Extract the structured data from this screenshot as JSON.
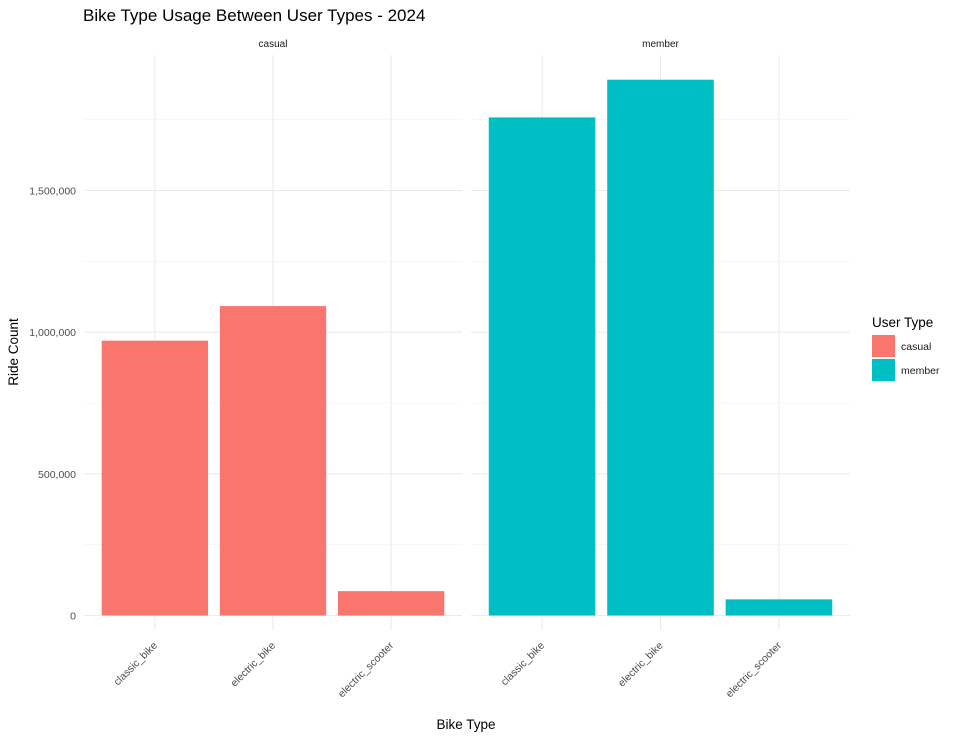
{
  "chart_data": {
    "type": "bar",
    "title": "Bike Type Usage Between User Types - 2024",
    "xlabel": "Bike Type",
    "ylabel": "Ride Count",
    "ylim": [
      0,
      1980000
    ],
    "y_ticks": [
      0,
      500000,
      1000000,
      1500000
    ],
    "y_tick_labels": [
      "0",
      "500,000",
      "1,000,000",
      "1,500,000"
    ],
    "categories": [
      "classic_bike",
      "electric_bike",
      "electric_scooter"
    ],
    "grid": true,
    "legend": {
      "title": "User Type",
      "position": "right",
      "entries": [
        {
          "label": "casual",
          "color": "#F8766D"
        },
        {
          "label": "member",
          "color": "#00BFC4"
        }
      ]
    },
    "facets": [
      {
        "label": "casual",
        "color": "#F8766D",
        "values": [
          970000,
          1092000,
          86000
        ]
      },
      {
        "label": "member",
        "color": "#00BFC4",
        "values": [
          1758000,
          1891000,
          57000
        ]
      }
    ]
  }
}
